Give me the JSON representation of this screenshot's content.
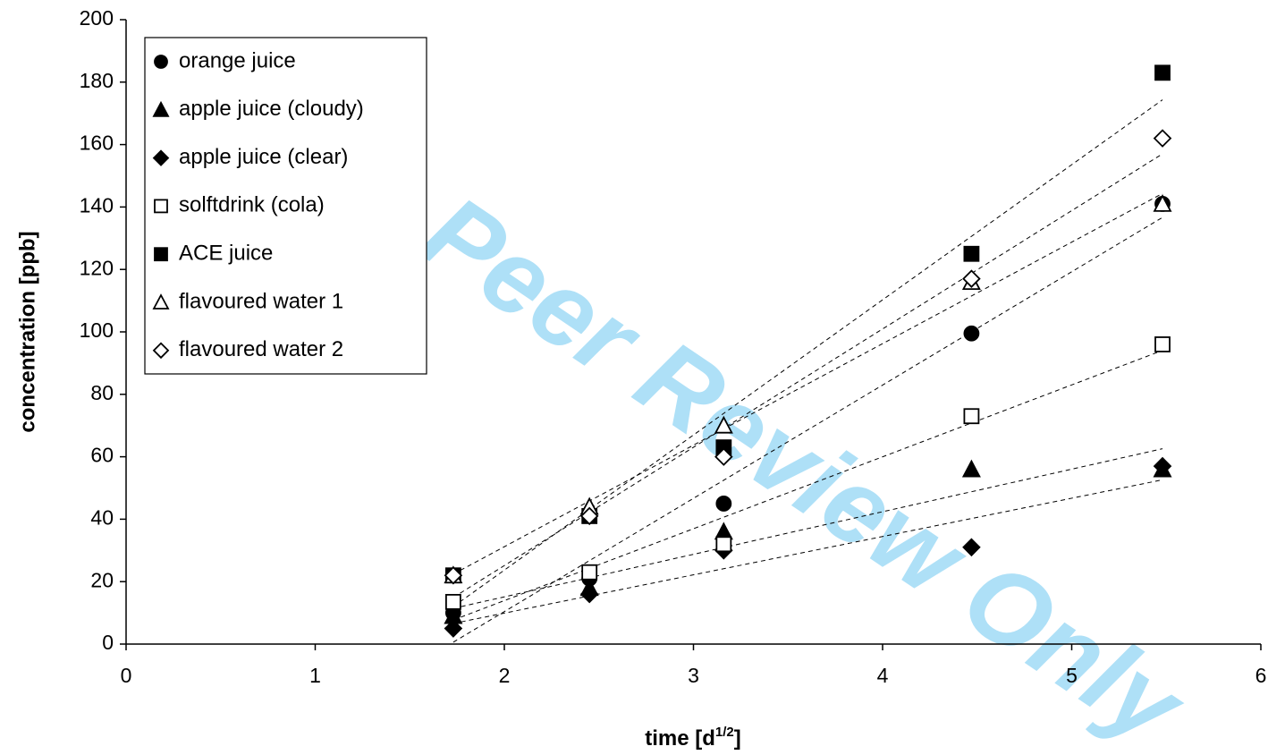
{
  "chart_data": {
    "type": "scatter",
    "watermark": "For Peer Review Only",
    "ylabel": "concentration [ppb]",
    "xlabel": [
      "time [d",
      "1/2",
      "]"
    ],
    "x": [
      1.73,
      2.45,
      3.16,
      4.47,
      5.48
    ],
    "xlim": [
      0,
      6
    ],
    "xticks": [
      0,
      1,
      2,
      3,
      4,
      5,
      6
    ],
    "ylim": [
      0,
      200
    ],
    "yticks": [
      0,
      20,
      40,
      60,
      80,
      100,
      120,
      140,
      160,
      180,
      200
    ],
    "legend": "upper left",
    "trendline": true,
    "series": [
      {
        "name": "orange juice",
        "color": "#000000",
        "marker": "circle",
        "filled": true,
        "values": [
          10,
          21,
          45,
          99.5,
          141
        ]
      },
      {
        "name": "apple juice (cloudy)",
        "color": "#000000",
        "marker": "triangle",
        "filled": true,
        "values": [
          9,
          18,
          36,
          56,
          56
        ]
      },
      {
        "name": "apple juice (clear)",
        "color": "#000000",
        "marker": "diamond",
        "filled": true,
        "values": [
          5,
          16,
          30,
          31,
          57
        ]
      },
      {
        "name": "solftdrink (cola)",
        "color": "#000000",
        "marker": "square",
        "filled": false,
        "values": [
          13.5,
          23,
          32,
          73,
          96
        ]
      },
      {
        "name": "ACE juice",
        "color": "#000000",
        "marker": "square",
        "filled": true,
        "values": [
          22,
          41,
          63,
          125,
          183
        ]
      },
      {
        "name": "flavoured water 1",
        "color": "#000000",
        "marker": "triangle",
        "filled": false,
        "values": [
          22,
          44,
          70,
          116,
          141
        ]
      },
      {
        "name": "flavoured water 2",
        "color": "#000000",
        "marker": "diamond",
        "filled": false,
        "values": [
          22,
          41,
          60,
          117,
          162
        ]
      }
    ]
  }
}
